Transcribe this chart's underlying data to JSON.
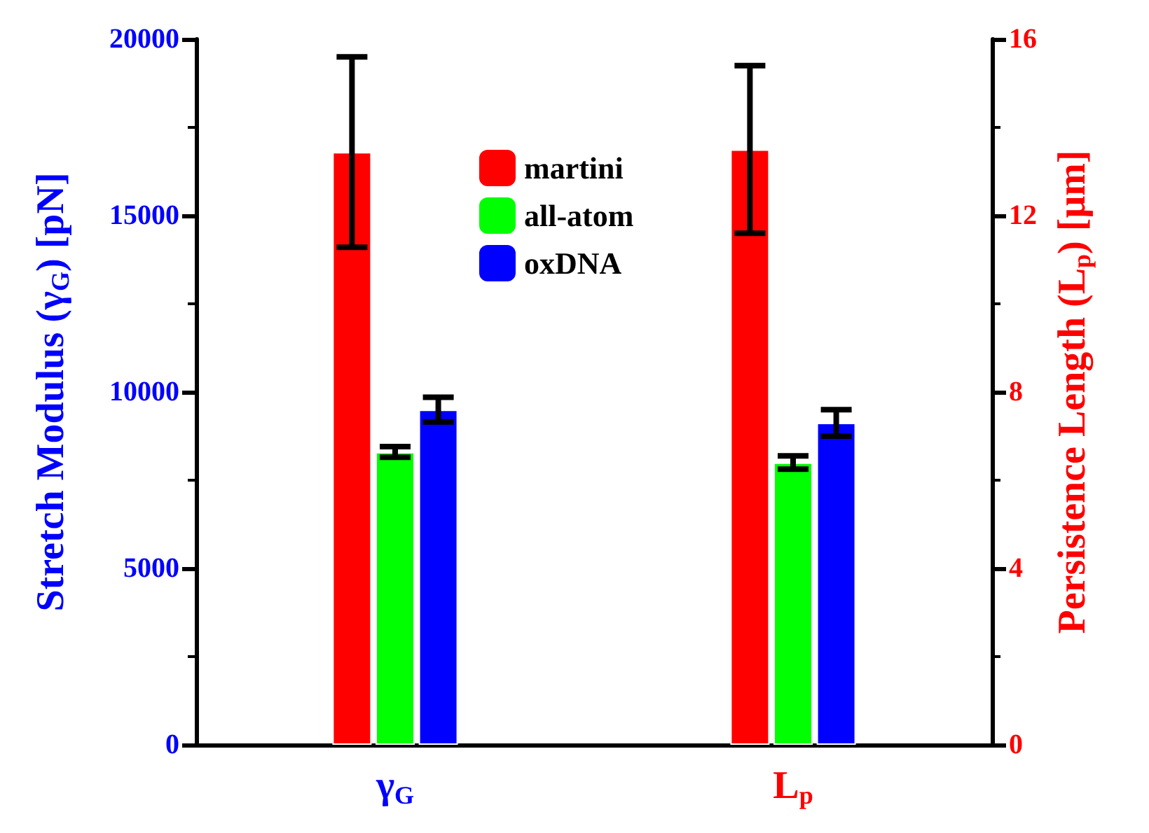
{
  "chart_data": {
    "type": "bar",
    "categories": [
      "γ$_{G}$",
      "L$_{p}$"
    ],
    "ylabel": "Stretch Modulus (γ$_{G}$) [pN]",
    "y2label": "Persistence Length (L$_{p}$) [μm]",
    "series": [
      {
        "name": "martini",
        "color": "#ff0000",
        "values": [
          16800,
          null
        ],
        "errors": [
          2700,
          null
        ]
      },
      {
        "name": "all-atom",
        "color": "#00ff00",
        "values": [
          8300,
          null
        ],
        "errors": [
          150,
          null
        ]
      },
      {
        "name": "oxDNA",
        "color": "#0000ff",
        "values": [
          9500,
          null
        ],
        "errors": [
          350,
          null
        ]
      },
      {
        "color": "#ff0000",
        "axis": "y2",
        "values": [
          null,
          13.5
        ],
        "errors": [
          null,
          1.9
        ]
      },
      {
        "color": "#00ff00",
        "axis": "y2",
        "values": [
          null,
          6.4
        ],
        "errors": [
          null,
          0.15
        ]
      },
      {
        "color": "#0000ff",
        "axis": "y2",
        "values": [
          null,
          7.3
        ],
        "errors": [
          null,
          0.3
        ]
      }
    ],
    "ylim": [
      0,
      20000
    ],
    "yticks": [
      0,
      5000,
      10000,
      15000,
      20000
    ],
    "y2lim": [
      0,
      16
    ],
    "y2ticks": [
      0,
      4,
      8,
      12,
      16
    ],
    "grid": false,
    "legend": "top"
  }
}
